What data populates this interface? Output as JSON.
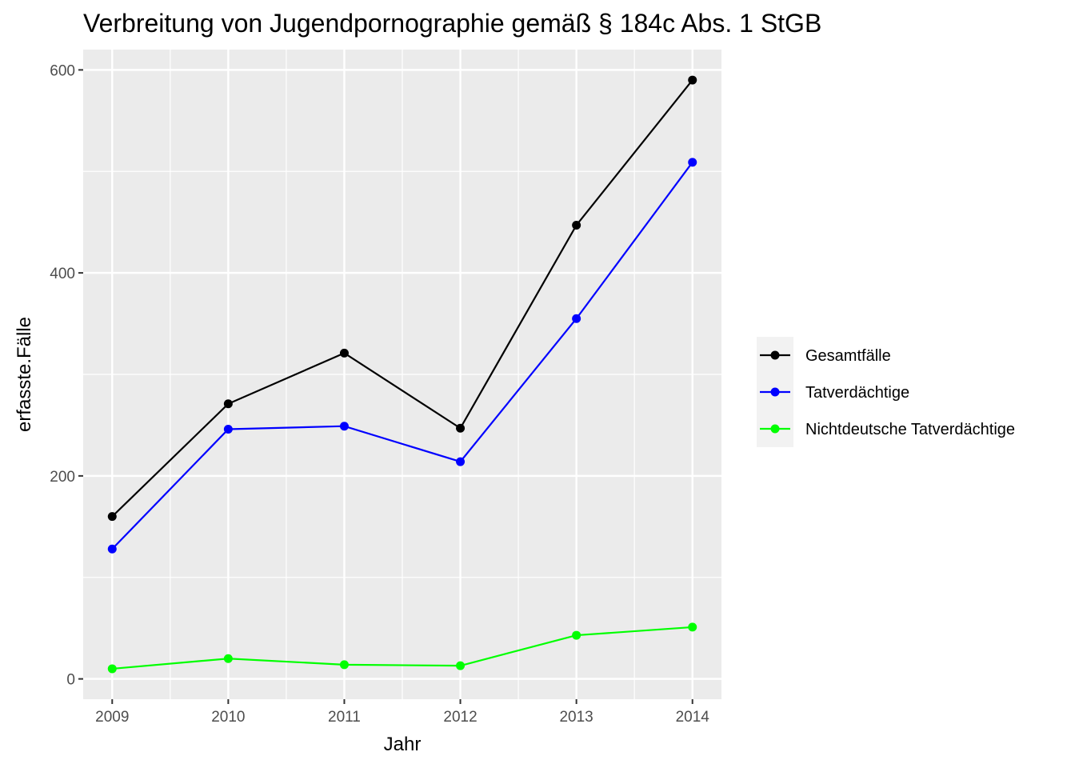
{
  "chart_data": {
    "type": "line",
    "title": "Verbreitung von Jugendpornographie gemäß § 184c Abs. 1 StGB",
    "xlabel": "Jahr",
    "ylabel": "erfasste.Fälle",
    "categories": [
      "2009",
      "2010",
      "2011",
      "2012",
      "2013",
      "2014"
    ],
    "x": [
      2009,
      2010,
      2011,
      2012,
      2013,
      2014
    ],
    "xlim": [
      2008.75,
      2014.25
    ],
    "ylim": [
      -20,
      620
    ],
    "yticks": [
      0,
      200,
      400,
      600
    ],
    "yminor": [
      100,
      300,
      500
    ],
    "grid": true,
    "legend_position": "right",
    "series": [
      {
        "name": "Gesamtfälle",
        "color": "#000000",
        "values": [
          160,
          271,
          321,
          247,
          447,
          590
        ]
      },
      {
        "name": "Tatverdächtige",
        "color": "#0000ff",
        "values": [
          128,
          246,
          249,
          214,
          355,
          509
        ]
      },
      {
        "name": "Nichtdeutsche Tatverdächtige",
        "color": "#00ff00",
        "values": [
          10,
          20,
          14,
          13,
          43,
          51
        ]
      }
    ],
    "panel_background": "#ebebeb",
    "grid_color": "#ffffff"
  }
}
